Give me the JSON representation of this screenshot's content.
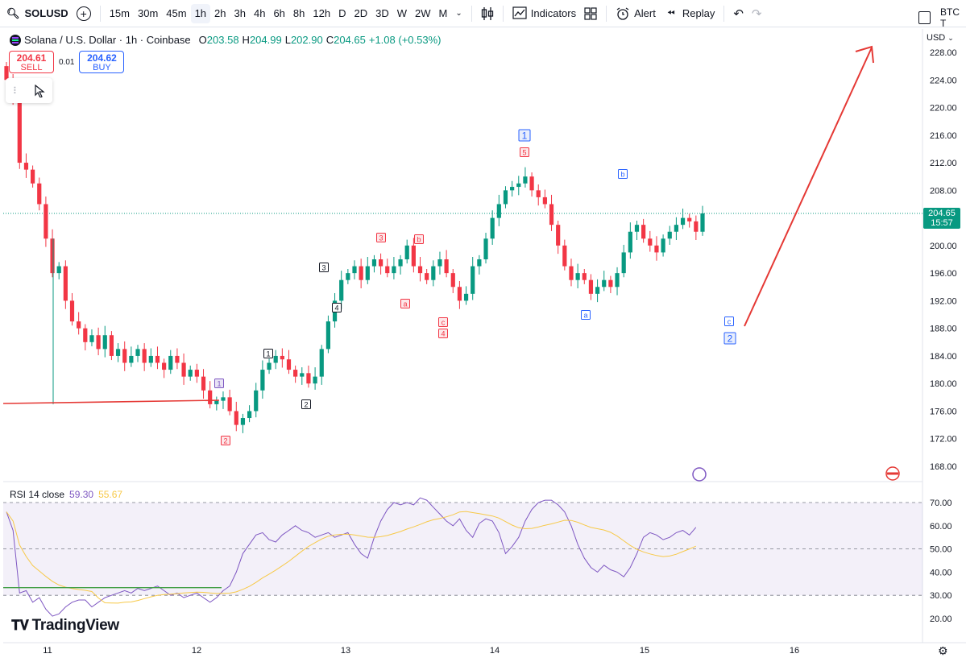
{
  "toolbar": {
    "symbol": "SOLUSD",
    "timeframes": [
      "15m",
      "30m",
      "45m",
      "1h",
      "2h",
      "3h",
      "4h",
      "6h",
      "8h",
      "12h",
      "D",
      "2D",
      "3D",
      "W",
      "2W",
      "M"
    ],
    "active_timeframe": "1h",
    "indicators_label": "Indicators",
    "alert_label": "Alert",
    "replay_label": "Replay",
    "right_label": "BTC T"
  },
  "legend": {
    "title": "Solana / U.S. Dollar · 1h · Coinbase",
    "open_label": "O",
    "open": "203.58",
    "high_label": "H",
    "high": "204.99",
    "low_label": "L",
    "low": "202.90",
    "close_label": "C",
    "close": "204.65",
    "change": "+1.08 (+0.53%)"
  },
  "trade": {
    "sell_price": "204.61",
    "sell_label": "SELL",
    "spread": "0.01",
    "buy_price": "204.62",
    "buy_label": "BUY"
  },
  "price_axis": {
    "currency": "USD",
    "ticks": [
      "228.00",
      "224.00",
      "220.00",
      "216.00",
      "212.00",
      "208.00",
      "204.00",
      "200.00",
      "196.00",
      "192.00",
      "188.00",
      "184.00",
      "180.00",
      "176.00",
      "172.00",
      "168.00"
    ],
    "last_price": "204.65",
    "countdown": "15:57"
  },
  "rsi": {
    "name": "RSI 14 close",
    "value": "59.30",
    "ma_value": "55.67",
    "ticks": [
      "70.00",
      "60.00",
      "50.00",
      "40.00",
      "30.00",
      "20.00"
    ]
  },
  "time_axis": {
    "labels": [
      "11",
      "12",
      "13",
      "14",
      "15",
      "16"
    ]
  },
  "wave_labels": [
    "1",
    "2",
    "1",
    "2",
    "3",
    "4",
    "3",
    "b",
    "a",
    "c",
    "4",
    "5",
    "1",
    "a",
    "b",
    "c",
    "2"
  ],
  "branding": {
    "logo_text": "TradingView"
  },
  "colors": {
    "up": "#089981",
    "down": "#f23645",
    "rsi_line": "#7e57c2",
    "rsi_ma": "#f7c948",
    "arrow": "#e53935"
  }
}
